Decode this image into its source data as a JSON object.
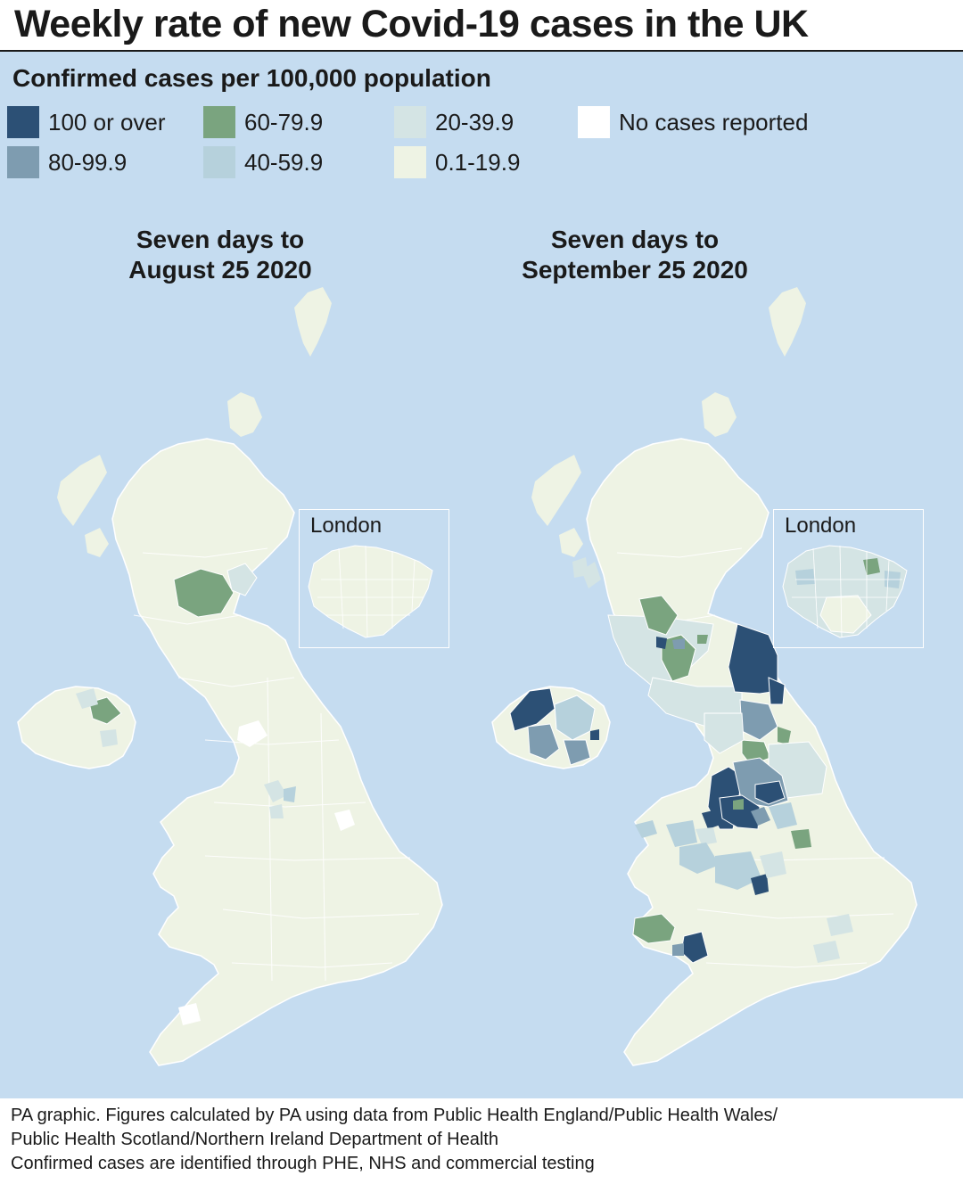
{
  "title": "Weekly rate of new Covid-19 cases in the UK",
  "legend": {
    "title": "Confirmed cases per 100,000 population",
    "items": [
      {
        "label": "100 or over",
        "color": "#2c5075"
      },
      {
        "label": "80-99.9",
        "color": "#7e9cb0"
      },
      {
        "label": "60-79.9",
        "color": "#7aa47f"
      },
      {
        "label": "40-59.9",
        "color": "#b6d1dc"
      },
      {
        "label": "20-39.9",
        "color": "#d4e4e4"
      },
      {
        "label": "0.1-19.9",
        "color": "#eef3e4"
      },
      {
        "label": "No cases reported",
        "color": "#ffffff"
      }
    ]
  },
  "maps": [
    {
      "heading_line1": "Seven days to",
      "heading_line2": "August 25 2020",
      "inset_label": "London"
    },
    {
      "heading_line1": "Seven days to",
      "heading_line2": "September 25 2020",
      "inset_label": "London"
    }
  ],
  "colors": {
    "sea": "#c5dcf0",
    "land_base": "#eef3e4",
    "border": "#ffffff"
  },
  "footer": {
    "line1": "PA graphic. Figures calculated by PA using data from Public Health England/Public Health Wales/",
    "line2": "Public Health Scotland/Northern Ireland Department of Health",
    "line3": "Confirmed cases are identified through PHE, NHS and commercial testing"
  }
}
